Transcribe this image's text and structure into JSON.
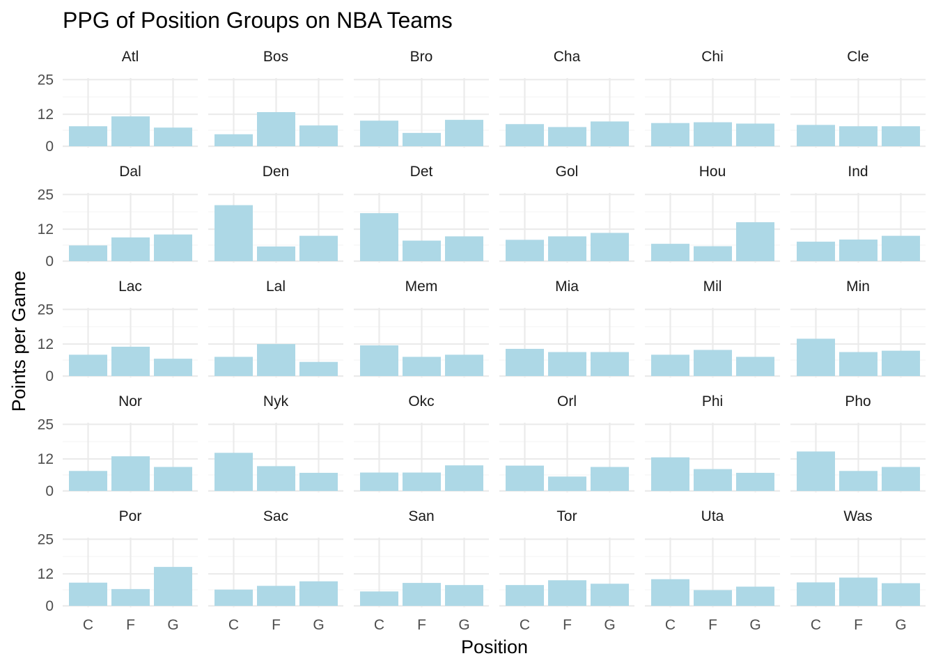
{
  "colors": {
    "bar": "#add8e6",
    "grid_major": "#ebebeb",
    "grid_minor": "#f5f5f5",
    "background": "#ffffff"
  },
  "chart_data": {
    "type": "bar",
    "title": "PPG of Position Groups on NBA Teams",
    "xlabel": "Position",
    "ylabel": "Points per Game",
    "categories": [
      "C",
      "F",
      "G"
    ],
    "ylim": [
      0,
      25
    ],
    "yticks": [
      0,
      12,
      25
    ],
    "grid": true,
    "facet_columns": 6,
    "facets": [
      {
        "name": "Atl",
        "values": [
          7.5,
          11.2,
          7.0
        ]
      },
      {
        "name": "Bos",
        "values": [
          4.5,
          12.8,
          7.8
        ]
      },
      {
        "name": "Bro",
        "values": [
          9.6,
          5.0,
          9.9
        ]
      },
      {
        "name": "Cha",
        "values": [
          8.3,
          7.2,
          9.3
        ]
      },
      {
        "name": "Chi",
        "values": [
          8.7,
          9.0,
          8.5
        ]
      },
      {
        "name": "Cle",
        "values": [
          8.0,
          7.5,
          7.5
        ]
      },
      {
        "name": "Dal",
        "values": [
          5.9,
          8.9,
          10.0
        ]
      },
      {
        "name": "Den",
        "values": [
          21.0,
          5.5,
          9.5
        ]
      },
      {
        "name": "Det",
        "values": [
          18.0,
          7.7,
          9.3
        ]
      },
      {
        "name": "Gol",
        "values": [
          8.0,
          9.3,
          10.6
        ]
      },
      {
        "name": "Hou",
        "values": [
          6.5,
          5.6,
          14.6
        ]
      },
      {
        "name": "Ind",
        "values": [
          7.3,
          8.1,
          9.5
        ]
      },
      {
        "name": "Lac",
        "values": [
          8.0,
          11.0,
          6.5
        ]
      },
      {
        "name": "Lal",
        "values": [
          7.2,
          12.0,
          5.3
        ]
      },
      {
        "name": "Mem",
        "values": [
          11.5,
          7.2,
          8.0
        ]
      },
      {
        "name": "Mia",
        "values": [
          10.2,
          9.0,
          9.0
        ]
      },
      {
        "name": "Mil",
        "values": [
          8.0,
          9.8,
          7.2
        ]
      },
      {
        "name": "Min",
        "values": [
          14.0,
          9.0,
          9.5
        ]
      },
      {
        "name": "Nor",
        "values": [
          7.5,
          13.0,
          9.0
        ]
      },
      {
        "name": "Nyk",
        "values": [
          14.3,
          9.3,
          6.8
        ]
      },
      {
        "name": "Okc",
        "values": [
          6.9,
          6.9,
          9.6
        ]
      },
      {
        "name": "Orl",
        "values": [
          9.5,
          5.4,
          9.0
        ]
      },
      {
        "name": "Phi",
        "values": [
          12.6,
          8.2,
          6.8
        ]
      },
      {
        "name": "Pho",
        "values": [
          14.8,
          7.5,
          9.0
        ]
      },
      {
        "name": "Por",
        "values": [
          8.7,
          6.3,
          14.6
        ]
      },
      {
        "name": "Sac",
        "values": [
          6.1,
          7.5,
          9.2
        ]
      },
      {
        "name": "San",
        "values": [
          5.4,
          8.6,
          7.8
        ]
      },
      {
        "name": "Tor",
        "values": [
          7.8,
          9.6,
          8.3
        ]
      },
      {
        "name": "Uta",
        "values": [
          10.0,
          5.9,
          7.2
        ]
      },
      {
        "name": "Was",
        "values": [
          8.8,
          10.6,
          8.5
        ]
      }
    ]
  }
}
